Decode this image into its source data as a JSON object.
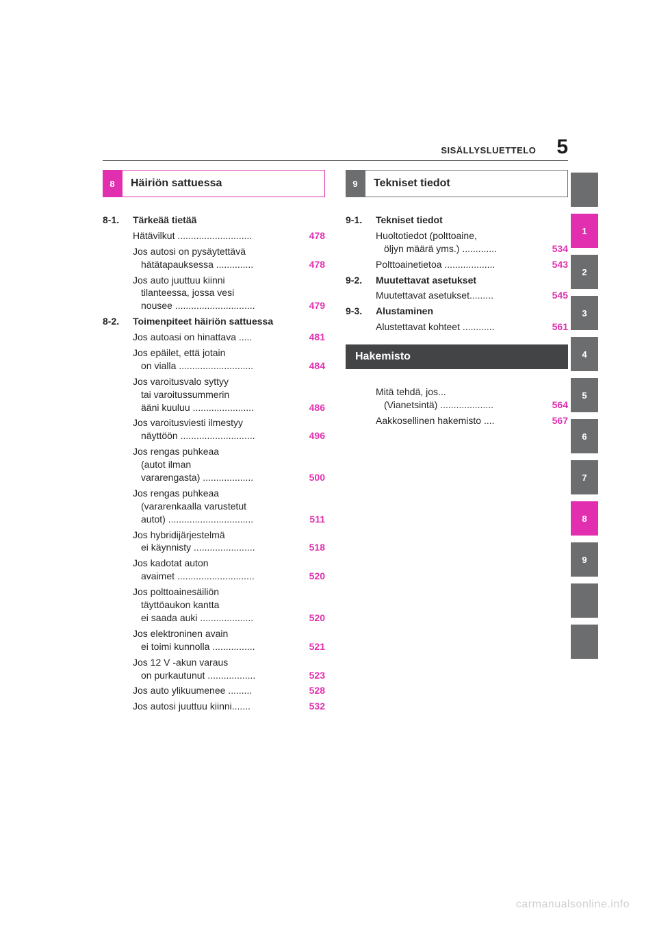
{
  "header": {
    "label": "SISÄLLYSLUETTELO",
    "page": "5"
  },
  "colors": {
    "accent": "#e22fb0",
    "grey": "#6b6d6f",
    "dark": "#434446"
  },
  "left": {
    "num": "8",
    "title": "Häiriön sattuessa",
    "subs": [
      {
        "num": "8-1.",
        "title": "Tärkeää tietää",
        "items": [
          {
            "lines": [
              "Hätävilkut ............................"
            ],
            "page": "478"
          },
          {
            "lines": [
              "Jos autosi on pysäytettävä",
              "hätätapauksessa .............."
            ],
            "page": "478"
          },
          {
            "lines": [
              "Jos auto juuttuu kiinni",
              "tilanteessa, jossa vesi",
              "nousee .............................."
            ],
            "page": "479"
          }
        ]
      },
      {
        "num": "8-2.",
        "title": "Toimenpiteet häiriön sattuessa",
        "items": [
          {
            "lines": [
              "Jos autoasi on hinattava ....."
            ],
            "page": "481"
          },
          {
            "lines": [
              "Jos epäilet, että jotain",
              "on vialla ............................"
            ],
            "page": "484"
          },
          {
            "lines": [
              "Jos varoitusvalo syttyy",
              "tai varoitussummerin",
              "ääni kuuluu ......................."
            ],
            "page": "486"
          },
          {
            "lines": [
              "Jos varoitusviesti ilmestyy",
              "näyttöön ............................"
            ],
            "page": "496"
          },
          {
            "lines": [
              "Jos rengas puhkeaa",
              "(autot ilman",
              "vararengasta) ..................."
            ],
            "page": "500"
          },
          {
            "lines": [
              "Jos rengas puhkeaa",
              "(vararenkaalla varustetut",
              "autot) ................................"
            ],
            "page": "511"
          },
          {
            "lines": [
              "Jos hybridijärjestelmä",
              "ei käynnisty ......................."
            ],
            "page": "518"
          },
          {
            "lines": [
              "Jos kadotat auton",
              "avaimet ............................."
            ],
            "page": "520"
          },
          {
            "lines": [
              "Jos polttoainesäiliön",
              "täyttöaukon kantta",
              "ei saada auki ...................."
            ],
            "page": "520"
          },
          {
            "lines": [
              "Jos elektroninen avain",
              "ei toimi kunnolla ................"
            ],
            "page": "521"
          },
          {
            "lines": [
              "Jos 12 V -akun varaus",
              "on purkautunut .................."
            ],
            "page": "523"
          },
          {
            "lines": [
              "Jos auto ylikuumenee ........."
            ],
            "page": "528"
          },
          {
            "lines": [
              "Jos autosi juuttuu kiinni......."
            ],
            "page": "532"
          }
        ]
      }
    ]
  },
  "right": {
    "num": "9",
    "title": "Tekniset tiedot",
    "subs": [
      {
        "num": "9-1.",
        "title": "Tekniset tiedot",
        "items": [
          {
            "lines": [
              "Huoltotiedot (polttoaine,",
              "öljyn määrä yms.) ............."
            ],
            "page": "534"
          },
          {
            "lines": [
              "Polttoainetietoa ..................."
            ],
            "page": "543"
          }
        ]
      },
      {
        "num": "9-2.",
        "title": "Muutettavat asetukset",
        "items": [
          {
            "lines": [
              "Muutettavat asetukset........."
            ],
            "page": "545"
          }
        ]
      },
      {
        "num": "9-3.",
        "title": "Alustaminen",
        "items": [
          {
            "lines": [
              "Alustettavat kohteet ............"
            ],
            "page": "561"
          }
        ]
      }
    ],
    "index_title": "Hakemisto",
    "index_items": [
      {
        "lines": [
          "Mitä tehdä, jos...",
          "(Vianetsintä)  ...................."
        ],
        "page": "564"
      },
      {
        "lines": [
          "Aakkosellinen hakemisto ...."
        ],
        "page": "567"
      }
    ]
  },
  "tabs": [
    {
      "label": "",
      "cls": "grey"
    },
    {
      "label": "1",
      "cls": "magenta"
    },
    {
      "label": "2",
      "cls": "grey"
    },
    {
      "label": "3",
      "cls": "grey"
    },
    {
      "label": "4",
      "cls": "grey"
    },
    {
      "label": "5",
      "cls": "grey"
    },
    {
      "label": "6",
      "cls": "grey"
    },
    {
      "label": "7",
      "cls": "grey"
    },
    {
      "label": "8",
      "cls": "magenta"
    },
    {
      "label": "9",
      "cls": "grey"
    },
    {
      "label": "",
      "cls": "grey"
    },
    {
      "label": "",
      "cls": "grey"
    }
  ],
  "watermark": "carmanualsonline.info"
}
